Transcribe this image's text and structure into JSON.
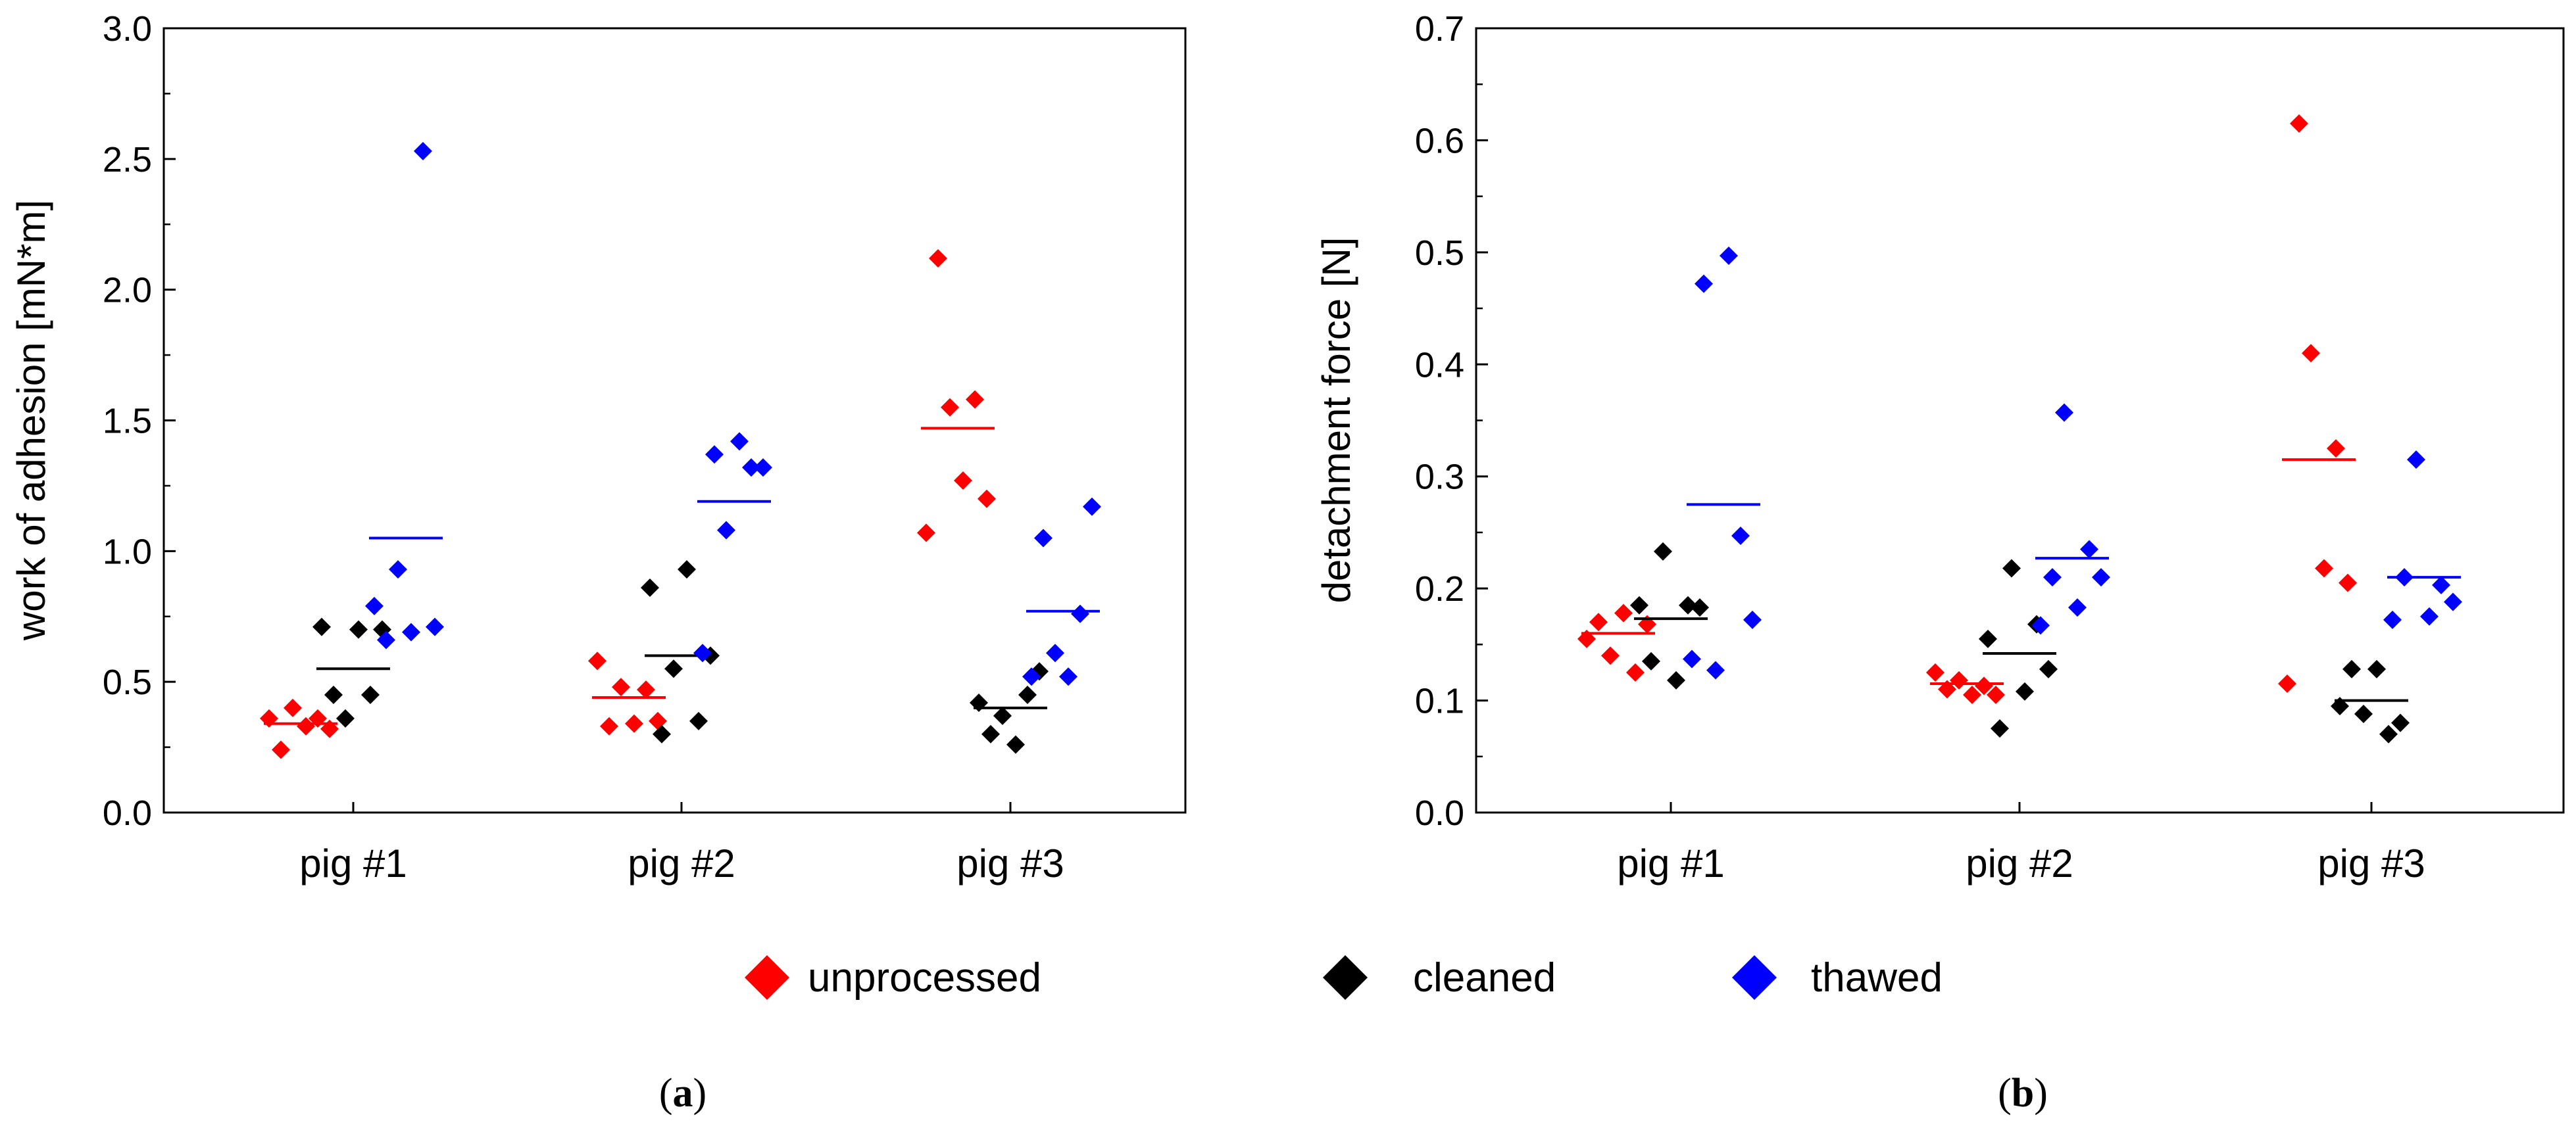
{
  "legend": {
    "items": [
      {
        "label": "unprocessed",
        "color": "#ff0000"
      },
      {
        "label": "cleaned",
        "color": "#000000"
      },
      {
        "label": "thawed",
        "color": "#0000ff"
      }
    ]
  },
  "chart_data": [
    {
      "type": "scatter",
      "panel": {
        "open": "(",
        "letter": "a",
        "close": ")"
      },
      "title": "",
      "xlabel": "",
      "ylabel": "work of adhesion [mN*m]",
      "categories": [
        "pig #1",
        "pig #2",
        "pig #3"
      ],
      "ylim": [
        0,
        3.0
      ],
      "yticks": [
        "0.0",
        "0.5",
        "1.0",
        "1.5",
        "2.0",
        "2.5",
        "3.0"
      ],
      "series": [
        {
          "name": "unprocessed",
          "color": "#ff0000",
          "values": [
            [
              0.36,
              0.24,
              0.4,
              0.33,
              0.36,
              0.32
            ],
            [
              0.58,
              0.33,
              0.48,
              0.34,
              0.47,
              0.35
            ],
            [
              1.07,
              2.12,
              1.55,
              1.27,
              1.58,
              1.2
            ]
          ],
          "means": [
            0.34,
            0.44,
            1.47
          ]
        },
        {
          "name": "cleaned",
          "color": "#000000",
          "values": [
            [
              0.71,
              0.45,
              0.36,
              0.7,
              0.45,
              0.7
            ],
            [
              0.86,
              0.3,
              0.55,
              0.93,
              0.35,
              0.6
            ],
            [
              0.42,
              0.3,
              0.37,
              0.26,
              0.45,
              0.54
            ]
          ],
          "means": [
            0.55,
            0.6,
            0.4
          ]
        },
        {
          "name": "thawed",
          "color": "#0000ff",
          "values": [
            [
              0.79,
              0.66,
              0.93,
              0.69,
              2.53,
              0.71
            ],
            [
              0.61,
              1.37,
              1.08,
              1.42,
              1.32,
              1.32
            ],
            [
              0.52,
              1.05,
              0.61,
              0.52,
              0.76,
              1.17
            ]
          ],
          "means": [
            1.05,
            1.19,
            0.77
          ]
        }
      ]
    },
    {
      "type": "scatter",
      "panel": {
        "open": "(",
        "letter": "b",
        "close": ")"
      },
      "title": "",
      "xlabel": "",
      "ylabel": "detachment force [N]",
      "categories": [
        "pig #1",
        "pig #2",
        "pig #3"
      ],
      "ylim": [
        0,
        0.7
      ],
      "yticks": [
        "0.0",
        "0.1",
        "0.2",
        "0.3",
        "0.4",
        "0.5",
        "0.6",
        "0.7"
      ],
      "series": [
        {
          "name": "unprocessed",
          "color": "#ff0000",
          "values": [
            [
              0.155,
              0.17,
              0.14,
              0.178,
              0.125,
              0.168
            ],
            [
              0.125,
              0.11,
              0.118,
              0.105,
              0.113,
              0.105
            ],
            [
              0.115,
              0.615,
              0.41,
              0.218,
              0.325,
              0.205
            ]
          ],
          "means": [
            0.16,
            0.115,
            0.315
          ]
        },
        {
          "name": "cleaned",
          "color": "#000000",
          "values": [
            [
              0.185,
              0.135,
              0.233,
              0.118,
              0.185,
              0.183
            ],
            [
              0.155,
              0.075,
              0.218,
              0.108,
              0.168,
              0.128
            ],
            [
              0.095,
              0.128,
              0.088,
              0.128,
              0.07,
              0.08
            ]
          ],
          "means": [
            0.173,
            0.142,
            0.1
          ]
        },
        {
          "name": "thawed",
          "color": "#0000ff",
          "values": [
            [
              0.137,
              0.472,
              0.127,
              0.497,
              0.247,
              0.172
            ],
            [
              0.167,
              0.21,
              0.357,
              0.183,
              0.235,
              0.21
            ],
            [
              0.172,
              0.21,
              0.315,
              0.175,
              0.203,
              0.188
            ]
          ],
          "means": [
            0.275,
            0.227,
            0.21
          ]
        }
      ]
    }
  ]
}
